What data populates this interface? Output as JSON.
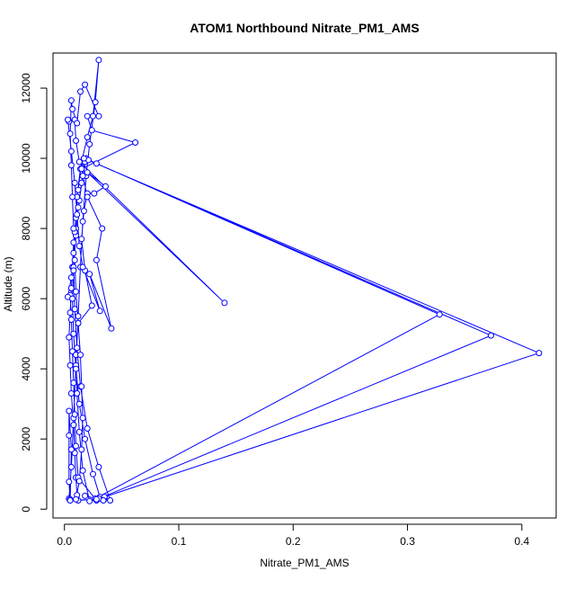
{
  "chart_data": {
    "type": "line",
    "title": "ATOM1 Northbound Nitrate_PM1_AMS",
    "xlabel": "Nitrate_PM1_AMS",
    "ylabel": "Altitude (m)",
    "xlim": [
      -0.01,
      0.43
    ],
    "ylim": [
      -250,
      13000
    ],
    "xticks": [
      0.0,
      0.1,
      0.2,
      0.3,
      0.4
    ],
    "xtick_labels": [
      "0.0",
      "0.1",
      "0.2",
      "0.3",
      "0.4"
    ],
    "yticks": [
      0,
      2000,
      4000,
      6000,
      8000,
      10000,
      12000
    ],
    "ytick_labels": [
      "0",
      "2000",
      "4000",
      "6000",
      "8000",
      "10000",
      "12000"
    ],
    "grid": false,
    "series_color": "#0000ff",
    "series": [
      {
        "points": [
          [
            0.004,
            300
          ],
          [
            0.006,
            1200
          ],
          [
            0.008,
            2600
          ],
          [
            0.01,
            4100
          ],
          [
            0.012,
            5500
          ],
          [
            0.014,
            6900
          ],
          [
            0.016,
            8200
          ],
          [
            0.019,
            9500
          ],
          [
            0.022,
            10400
          ],
          [
            0.027,
            11600
          ],
          [
            0.03,
            12800
          ],
          [
            0.025,
            11200
          ],
          [
            0.02,
            10600
          ],
          [
            0.015,
            9900
          ],
          [
            0.012,
            9100
          ],
          [
            0.01,
            8300
          ],
          [
            0.008,
            7600
          ],
          [
            0.007,
            6900
          ],
          [
            0.006,
            6300
          ],
          [
            0.005,
            5600
          ],
          [
            0.004,
            4900
          ],
          [
            0.005,
            4100
          ],
          [
            0.006,
            3300
          ],
          [
            0.008,
            2400
          ],
          [
            0.009,
            1600
          ],
          [
            0.01,
            900
          ],
          [
            0.011,
            400
          ],
          [
            0.012,
            250
          ],
          [
            0.035,
            300
          ],
          [
            0.028,
            250
          ],
          [
            0.012,
            900
          ],
          [
            0.01,
            1800
          ],
          [
            0.009,
            2700
          ],
          [
            0.008,
            3600
          ],
          [
            0.007,
            4500
          ],
          [
            0.006,
            5400
          ],
          [
            0.005,
            6100
          ],
          [
            0.003,
            6050
          ],
          [
            0.006,
            6600
          ],
          [
            0.008,
            7300
          ],
          [
            0.01,
            8000
          ],
          [
            0.013,
            8800
          ],
          [
            0.016,
            9500
          ],
          [
            0.019,
            10000
          ],
          [
            0.028,
            9850
          ],
          [
            0.328,
            5550
          ],
          [
            0.027,
            300
          ],
          [
            0.031,
            350
          ],
          [
            0.025,
            1000
          ],
          [
            0.018,
            2000
          ],
          [
            0.013,
            3000
          ],
          [
            0.01,
            4000
          ],
          [
            0.008,
            5000
          ],
          [
            0.007,
            6000
          ],
          [
            0.008,
            6900
          ],
          [
            0.01,
            7800
          ],
          [
            0.012,
            8600
          ],
          [
            0.015,
            9300
          ],
          [
            0.018,
            9900
          ],
          [
            0.021,
            9950
          ],
          [
            0.373,
            4950
          ],
          [
            0.03,
            300
          ],
          [
            0.04,
            250
          ],
          [
            0.03,
            1200
          ],
          [
            0.02,
            2300
          ],
          [
            0.014,
            3500
          ],
          [
            0.011,
            4600
          ],
          [
            0.009,
            5700
          ],
          [
            0.008,
            6800
          ],
          [
            0.009,
            7900
          ],
          [
            0.011,
            8900
          ],
          [
            0.014,
            9700
          ],
          [
            0.017,
            10000
          ],
          [
            0.415,
            4450
          ],
          [
            0.035,
            350
          ],
          [
            0.022,
            230
          ],
          [
            0.016,
            1100
          ],
          [
            0.013,
            2200
          ],
          [
            0.011,
            3300
          ],
          [
            0.01,
            4400
          ],
          [
            0.012,
            5300
          ],
          [
            0.024,
            5800
          ],
          [
            0.018,
            6800
          ],
          [
            0.015,
            7700
          ],
          [
            0.017,
            8500
          ],
          [
            0.02,
            9000
          ],
          [
            0.026,
            9000
          ],
          [
            0.036,
            9200
          ],
          [
            0.02,
            9600
          ],
          [
            0.14,
            5880
          ],
          [
            0.013,
            9900
          ],
          [
            0.01,
            10500
          ],
          [
            0.009,
            11100
          ],
          [
            0.004,
            11050
          ],
          [
            0.003,
            11100
          ],
          [
            0.006,
            10200
          ],
          [
            0.009,
            9300
          ],
          [
            0.011,
            8400
          ],
          [
            0.013,
            7500
          ],
          [
            0.016,
            6900
          ],
          [
            0.031,
            5650
          ],
          [
            0.022,
            6700
          ],
          [
            0.041,
            5150
          ],
          [
            0.028,
            7100
          ],
          [
            0.033,
            8000
          ],
          [
            0.02,
            8900
          ],
          [
            0.015,
            9700
          ],
          [
            0.062,
            10450
          ],
          [
            0.024,
            10800
          ],
          [
            0.02,
            11200
          ],
          [
            0.03,
            11200
          ],
          [
            0.018,
            12100
          ],
          [
            0.014,
            11900
          ],
          [
            0.011,
            11000
          ],
          [
            0.007,
            11400
          ],
          [
            0.006,
            11650
          ],
          [
            0.005,
            10700
          ],
          [
            0.006,
            9800
          ],
          [
            0.007,
            8900
          ],
          [
            0.008,
            8000
          ],
          [
            0.009,
            7100
          ],
          [
            0.01,
            6200
          ],
          [
            0.012,
            5300
          ],
          [
            0.014,
            4400
          ],
          [
            0.015,
            3500
          ],
          [
            0.016,
            2600
          ],
          [
            0.015,
            1700
          ],
          [
            0.013,
            800
          ],
          [
            0.01,
            280
          ],
          [
            0.005,
            280
          ],
          [
            0.004,
            780
          ],
          [
            0.004,
            2100
          ],
          [
            0.004,
            2800
          ],
          [
            0.006,
            1700
          ],
          [
            0.005,
            250
          ],
          [
            0.028,
            280
          ],
          [
            0.034,
            250
          ],
          [
            0.018,
            380
          ]
        ]
      }
    ]
  }
}
